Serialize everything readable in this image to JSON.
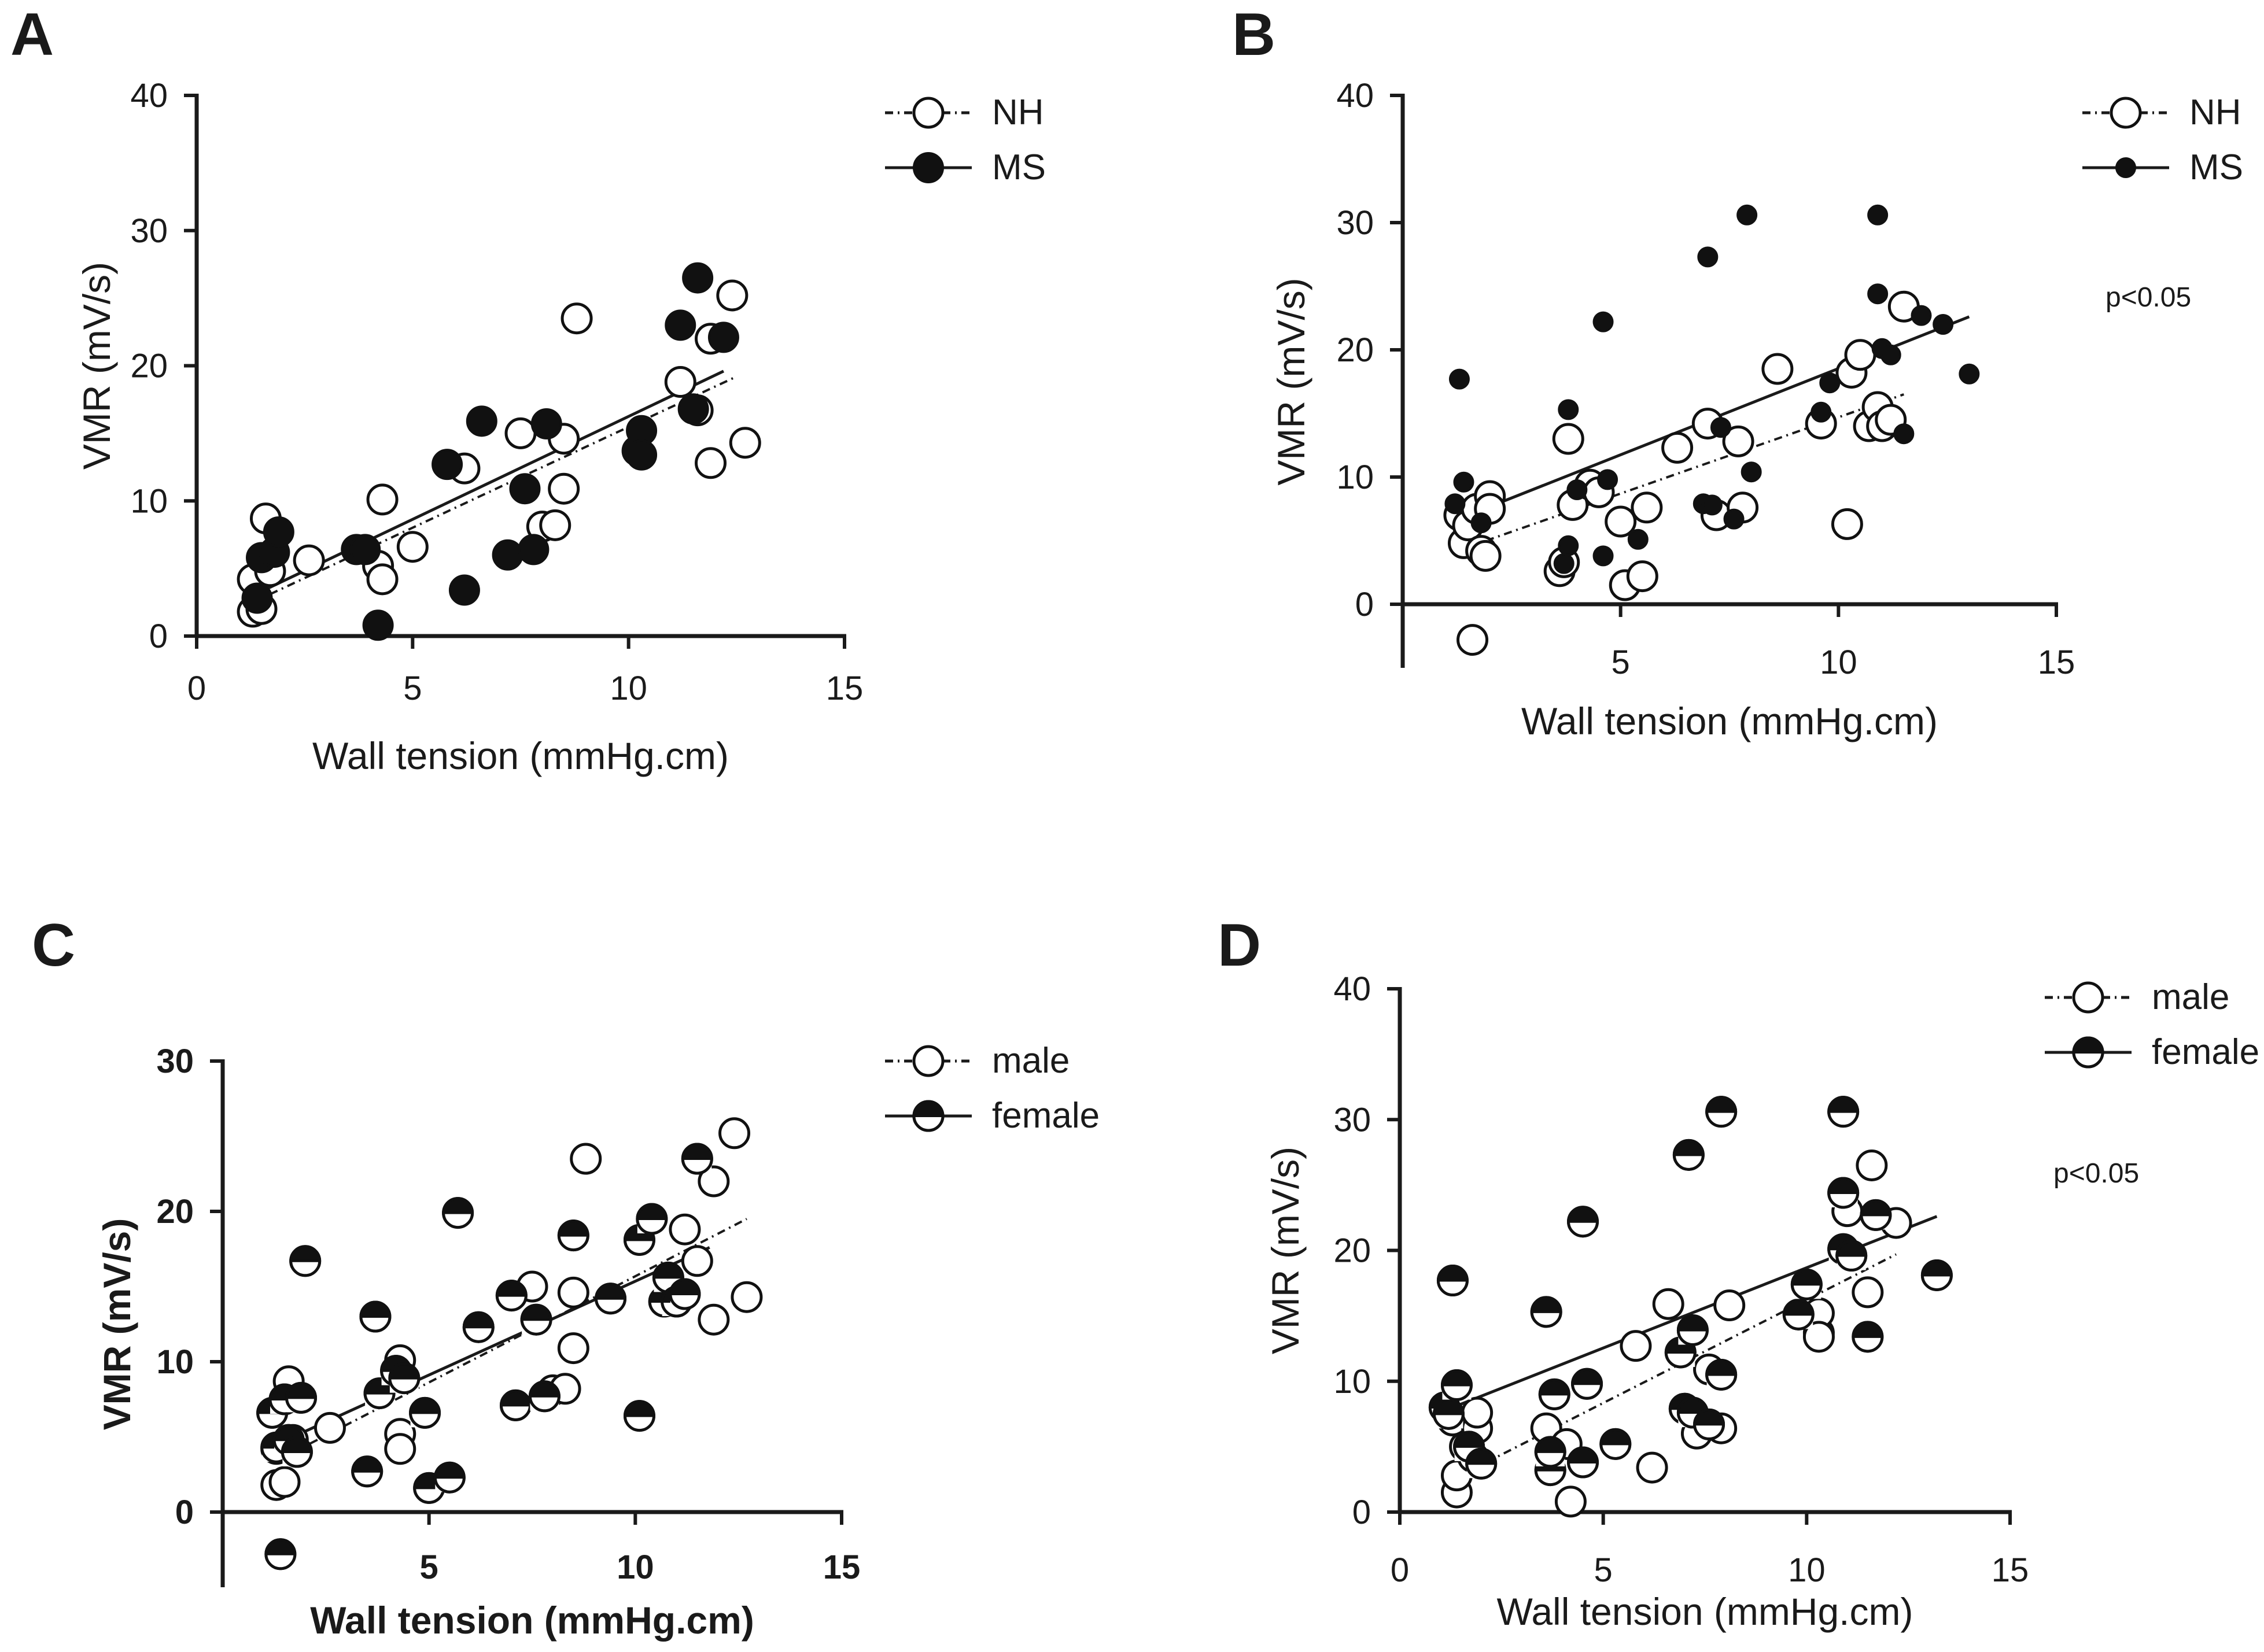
{
  "chart_data": [
    {
      "panel": "A",
      "type": "scatter",
      "xlabel": "Wall tension (mmHg.cm)",
      "ylabel": "VMR (mV/s)",
      "xlim": [
        0,
        15
      ],
      "ylim": [
        0,
        40
      ],
      "xticks": [
        "0",
        "5",
        "10",
        "15"
      ],
      "yticks": [
        "0",
        "10",
        "20",
        "30",
        "40"
      ],
      "annotation": "",
      "series": [
        {
          "name": "NH",
          "marker": "open",
          "line": "dashdot",
          "fit": [
            [
              1.3,
              2.5
            ],
            [
              12.5,
              19.2
            ]
          ],
          "points": [
            [
              1.3,
              4.2
            ],
            [
              1.3,
              1.8
            ],
            [
              1.5,
              2.0
            ],
            [
              1.6,
              8.7
            ],
            [
              1.7,
              4.8
            ],
            [
              2.6,
              5.6
            ],
            [
              4.2,
              5.2
            ],
            [
              4.3,
              10.1
            ],
            [
              4.3,
              4.2
            ],
            [
              5.0,
              6.6
            ],
            [
              6.2,
              12.4
            ],
            [
              7.5,
              15.0
            ],
            [
              8.0,
              8.1
            ],
            [
              8.3,
              8.2
            ],
            [
              8.5,
              10.9
            ],
            [
              8.5,
              14.6
            ],
            [
              8.8,
              23.5
            ],
            [
              11.2,
              18.8
            ],
            [
              11.6,
              16.7
            ],
            [
              11.9,
              22.0
            ],
            [
              11.9,
              12.8
            ],
            [
              12.4,
              25.2
            ],
            [
              12.7,
              14.3
            ]
          ]
        },
        {
          "name": "MS",
          "marker": "filled",
          "line": "solid",
          "fit": [
            [
              1.3,
              3.0
            ],
            [
              12.2,
              19.6
            ]
          ],
          "points": [
            [
              1.4,
              2.8
            ],
            [
              1.5,
              5.8
            ],
            [
              1.8,
              6.2
            ],
            [
              1.9,
              7.7
            ],
            [
              3.7,
              6.4
            ],
            [
              3.9,
              6.4
            ],
            [
              4.2,
              0.8
            ],
            [
              5.8,
              12.7
            ],
            [
              6.2,
              3.4
            ],
            [
              6.6,
              15.9
            ],
            [
              7.2,
              6.0
            ],
            [
              7.6,
              10.9
            ],
            [
              7.8,
              6.4
            ],
            [
              8.1,
              15.7
            ],
            [
              10.2,
              13.7
            ],
            [
              10.3,
              15.2
            ],
            [
              10.3,
              13.4
            ],
            [
              11.2,
              23.0
            ],
            [
              11.5,
              16.8
            ],
            [
              11.6,
              26.5
            ],
            [
              12.2,
              22.1
            ]
          ]
        }
      ]
    },
    {
      "panel": "B",
      "type": "scatter",
      "xlabel": "Wall tension (mmHg.cm)",
      "ylabel": "VMR (mV/s)",
      "xlim": [
        0,
        15
      ],
      "ylim": [
        -5,
        40
      ],
      "xticks": [
        "5",
        "10",
        "15"
      ],
      "yticks": [
        "0",
        "10",
        "20",
        "30",
        "40"
      ],
      "annotation": "p<0.05",
      "series": [
        {
          "name": "NH",
          "marker": "open",
          "line": "dashdot",
          "fit": [
            [
              1.5,
              4.5
            ],
            [
              11.5,
              16.5
            ]
          ],
          "points": [
            [
              1.3,
              7.0
            ],
            [
              1.4,
              4.8
            ],
            [
              1.5,
              6.2
            ],
            [
              1.6,
              -2.8
            ],
            [
              1.7,
              7.5
            ],
            [
              1.8,
              4.2
            ],
            [
              1.9,
              3.8
            ],
            [
              2.0,
              8.5
            ],
            [
              2.0,
              7.5
            ],
            [
              3.6,
              2.6
            ],
            [
              3.7,
              3.3
            ],
            [
              3.8,
              13.0
            ],
            [
              3.9,
              7.8
            ],
            [
              4.3,
              9.4
            ],
            [
              4.5,
              8.8
            ],
            [
              5.0,
              6.5
            ],
            [
              5.1,
              1.5
            ],
            [
              5.5,
              2.2
            ],
            [
              5.6,
              7.6
            ],
            [
              6.3,
              12.3
            ],
            [
              7.0,
              14.2
            ],
            [
              7.2,
              7.0
            ],
            [
              7.7,
              12.8
            ],
            [
              7.8,
              7.6
            ],
            [
              8.6,
              18.5
            ],
            [
              9.6,
              14.2
            ],
            [
              10.2,
              6.3
            ],
            [
              10.3,
              18.2
            ],
            [
              10.5,
              19.6
            ],
            [
              10.7,
              14.0
            ],
            [
              10.9,
              15.5
            ],
            [
              11.0,
              14.0
            ],
            [
              11.2,
              14.5
            ],
            [
              11.5,
              23.4
            ]
          ]
        },
        {
          "name": "MS",
          "marker": "filled",
          "line": "solid",
          "fit": [
            [
              1.5,
              7.0
            ],
            [
              13.0,
              22.6
            ]
          ],
          "points": [
            [
              1.2,
              7.9
            ],
            [
              1.3,
              17.7
            ],
            [
              1.4,
              9.6
            ],
            [
              1.8,
              6.4
            ],
            [
              3.7,
              3.2
            ],
            [
              3.8,
              15.3
            ],
            [
              3.8,
              4.6
            ],
            [
              4.0,
              9.0
            ],
            [
              4.6,
              22.2
            ],
            [
              4.6,
              3.8
            ],
            [
              4.7,
              9.8
            ],
            [
              5.4,
              5.1
            ],
            [
              6.9,
              7.9
            ],
            [
              7.0,
              27.3
            ],
            [
              7.1,
              7.8
            ],
            [
              7.3,
              13.9
            ],
            [
              7.6,
              6.7
            ],
            [
              7.9,
              30.6
            ],
            [
              8.0,
              10.4
            ],
            [
              9.6,
              15.1
            ],
            [
              9.8,
              17.4
            ],
            [
              10.9,
              30.6
            ],
            [
              10.9,
              24.4
            ],
            [
              11.0,
              20.1
            ],
            [
              11.2,
              19.6
            ],
            [
              11.5,
              13.4
            ],
            [
              11.9,
              22.7
            ],
            [
              12.4,
              22.0
            ],
            [
              13.0,
              18.1
            ]
          ]
        }
      ]
    },
    {
      "panel": "C",
      "type": "scatter",
      "xlabel": "Wall tension (mmHg.cm)",
      "ylabel": "VMR (mV/s)",
      "xlim": [
        0,
        15
      ],
      "ylim": [
        -5,
        30
      ],
      "xticks": [
        "5",
        "10",
        "15"
      ],
      "yticks": [
        "0",
        "10",
        "20",
        "30"
      ],
      "annotation": "",
      "series": [
        {
          "name": "male",
          "marker": "open",
          "line": "dashdot",
          "fit": [
            [
              1.3,
              3.4
            ],
            [
              12.7,
              19.5
            ]
          ],
          "points": [
            [
              1.3,
              4.2
            ],
            [
              1.3,
              1.8
            ],
            [
              1.5,
              2.0
            ],
            [
              1.6,
              8.7
            ],
            [
              1.7,
              4.8
            ],
            [
              2.6,
              5.6
            ],
            [
              4.3,
              5.2
            ],
            [
              4.3,
              10.1
            ],
            [
              4.3,
              4.2
            ],
            [
              7.5,
              15.0
            ],
            [
              8.0,
              8.1
            ],
            [
              8.3,
              8.2
            ],
            [
              8.5,
              10.9
            ],
            [
              8.5,
              14.6
            ],
            [
              8.8,
              23.5
            ],
            [
              11.2,
              18.8
            ],
            [
              11.5,
              16.7
            ],
            [
              11.9,
              22.0
            ],
            [
              11.9,
              12.8
            ],
            [
              12.4,
              25.2
            ],
            [
              12.7,
              14.3
            ]
          ]
        },
        {
          "name": "female",
          "marker": "half",
          "line": "solid",
          "fit": [
            [
              1.3,
              4.5
            ],
            [
              11.8,
              17.6
            ]
          ],
          "points": [
            [
              1.2,
              6.6
            ],
            [
              1.3,
              4.3
            ],
            [
              1.4,
              -2.8
            ],
            [
              1.5,
              7.5
            ],
            [
              1.6,
              4.8
            ],
            [
              1.8,
              4.0
            ],
            [
              1.9,
              7.6
            ],
            [
              2.0,
              16.7
            ],
            [
              3.5,
              2.7
            ],
            [
              3.7,
              13.0
            ],
            [
              3.8,
              7.9
            ],
            [
              4.2,
              9.4
            ],
            [
              4.4,
              8.9
            ],
            [
              4.9,
              6.6
            ],
            [
              5.0,
              1.6
            ],
            [
              5.5,
              2.3
            ],
            [
              5.7,
              19.9
            ],
            [
              6.2,
              12.3
            ],
            [
              7.0,
              14.4
            ],
            [
              7.1,
              7.1
            ],
            [
              7.6,
              12.8
            ],
            [
              7.8,
              7.7
            ],
            [
              8.5,
              18.4
            ],
            [
              9.4,
              14.2
            ],
            [
              10.1,
              18.1
            ],
            [
              10.1,
              6.4
            ],
            [
              10.4,
              19.5
            ],
            [
              10.7,
              14.0
            ],
            [
              10.8,
              15.6
            ],
            [
              11.0,
              14.0
            ],
            [
              11.2,
              14.5
            ],
            [
              11.5,
              23.5
            ]
          ]
        }
      ]
    },
    {
      "panel": "D",
      "type": "scatter",
      "xlabel": "Wall tension (mmHg.cm)",
      "ylabel": "VMR (mV/s)",
      "xlim": [
        0,
        15
      ],
      "ylim": [
        0,
        40
      ],
      "xticks": [
        "0",
        "5",
        "10",
        "15"
      ],
      "yticks": [
        "0",
        "10",
        "20",
        "30",
        "40"
      ],
      "annotation": "p<0.05",
      "series": [
        {
          "name": "male",
          "marker": "open",
          "line": "dashdot",
          "fit": [
            [
              1.3,
              2.5
            ],
            [
              12.2,
              19.7
            ]
          ],
          "points": [
            [
              1.3,
              7.0
            ],
            [
              1.4,
              1.5
            ],
            [
              1.4,
              2.8
            ],
            [
              1.6,
              5.0
            ],
            [
              1.8,
              4.2
            ],
            [
              1.9,
              6.4
            ],
            [
              1.9,
              7.6
            ],
            [
              3.6,
              6.4
            ],
            [
              4.1,
              5.2
            ],
            [
              4.2,
              0.8
            ],
            [
              5.8,
              12.7
            ],
            [
              6.2,
              3.4
            ],
            [
              6.6,
              15.9
            ],
            [
              7.3,
              6.0
            ],
            [
              7.6,
              10.9
            ],
            [
              7.9,
              6.4
            ],
            [
              8.1,
              15.8
            ],
            [
              10.3,
              13.7
            ],
            [
              10.3,
              15.2
            ],
            [
              10.3,
              13.4
            ],
            [
              11.0,
              23.0
            ],
            [
              11.5,
              16.8
            ],
            [
              11.6,
              26.5
            ],
            [
              12.2,
              22.1
            ]
          ]
        },
        {
          "name": "female",
          "marker": "half",
          "line": "solid",
          "fit": [
            [
              1.3,
              8.0
            ],
            [
              13.2,
              22.6
            ]
          ],
          "points": [
            [
              1.1,
              8.0
            ],
            [
              1.2,
              7.5
            ],
            [
              1.3,
              17.7
            ],
            [
              1.4,
              9.7
            ],
            [
              1.7,
              5.0
            ],
            [
              2.0,
              3.7
            ],
            [
              3.6,
              15.3
            ],
            [
              3.7,
              3.2
            ],
            [
              3.7,
              4.6
            ],
            [
              3.8,
              9.0
            ],
            [
              4.5,
              22.2
            ],
            [
              4.5,
              3.8
            ],
            [
              4.6,
              9.8
            ],
            [
              5.3,
              5.2
            ],
            [
              6.9,
              12.2
            ],
            [
              7.0,
              7.9
            ],
            [
              7.1,
              27.3
            ],
            [
              7.2,
              7.6
            ],
            [
              7.2,
              13.9
            ],
            [
              7.6,
              6.7
            ],
            [
              7.9,
              30.6
            ],
            [
              7.9,
              10.5
            ],
            [
              9.8,
              15.1
            ],
            [
              10.0,
              17.4
            ],
            [
              10.9,
              30.6
            ],
            [
              10.9,
              24.4
            ],
            [
              10.9,
              20.1
            ],
            [
              11.1,
              19.6
            ],
            [
              11.5,
              13.4
            ],
            [
              11.7,
              22.7
            ],
            [
              13.2,
              18.1
            ]
          ]
        }
      ]
    }
  ]
}
